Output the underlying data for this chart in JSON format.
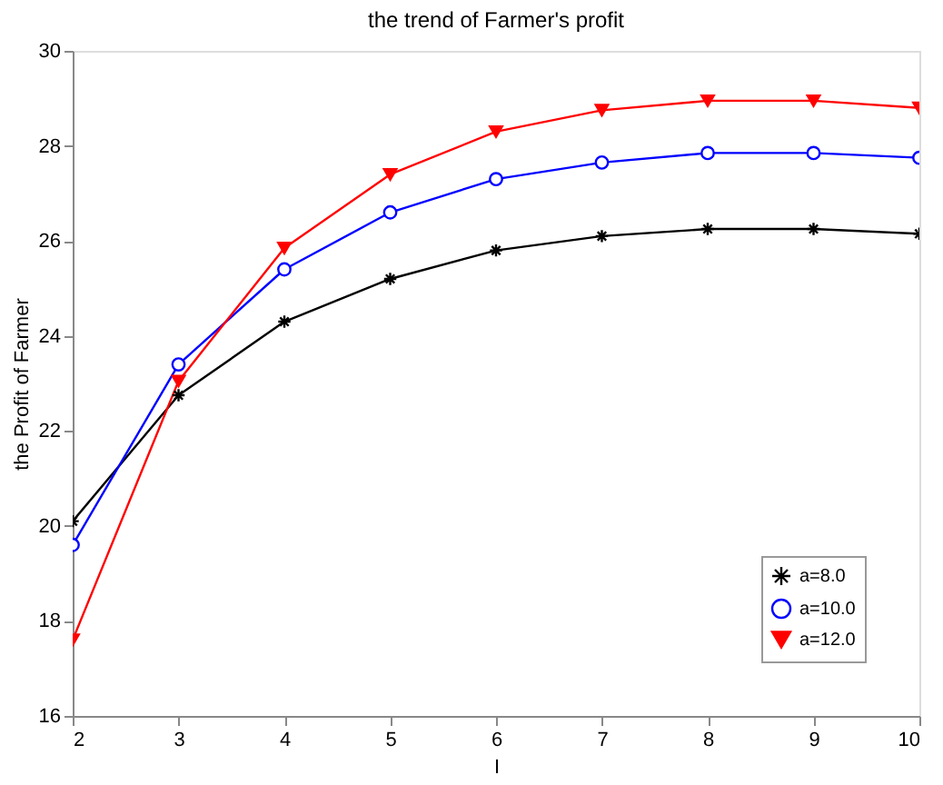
{
  "chart_data": {
    "type": "line",
    "title": "the trend of Farmer's profit",
    "xlabel": "I",
    "ylabel": "the Profit of Farmer",
    "x": [
      2,
      3,
      4,
      5,
      6,
      7,
      8,
      9,
      10
    ],
    "series": [
      {
        "name": "a=8.0",
        "color": "#000000",
        "marker": "cross",
        "values": [
          20.1,
          22.75,
          24.3,
          25.2,
          25.8,
          26.1,
          26.25,
          26.25,
          26.15
        ]
      },
      {
        "name": "a=10.0",
        "color": "#0000ff",
        "marker": "circle",
        "values": [
          19.6,
          23.4,
          25.4,
          26.6,
          27.3,
          27.65,
          27.85,
          27.85,
          27.75
        ]
      },
      {
        "name": "a=12.0",
        "color": "#ff0000",
        "marker": "triangle",
        "values": [
          17.6,
          23.05,
          25.85,
          27.4,
          28.3,
          28.75,
          28.95,
          28.95,
          28.8
        ]
      }
    ],
    "xlim": [
      2,
      10
    ],
    "xticks": [
      2,
      3,
      4,
      5,
      6,
      7,
      8,
      9,
      10
    ],
    "ylim": [
      16,
      30
    ],
    "yticks": [
      16,
      18,
      20,
      22,
      24,
      26,
      28,
      30
    ],
    "grid": false,
    "legend": "bottom right",
    "line_style": "solid"
  }
}
